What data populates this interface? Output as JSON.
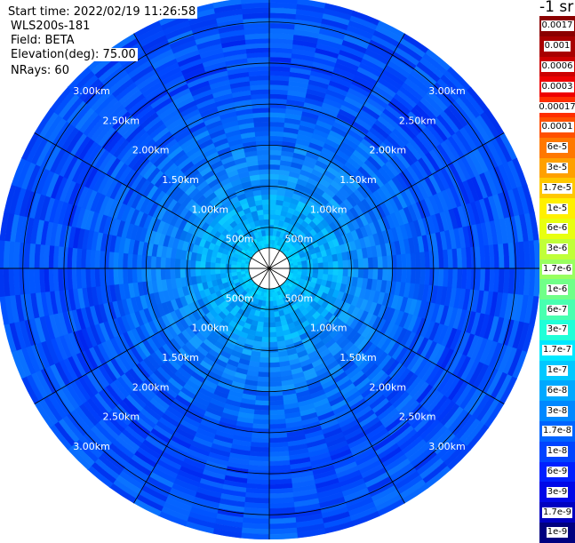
{
  "info": {
    "start_time": "Start time: 2022/02/19 11:26:58",
    "instrument": "WLS200s-181",
    "field": "Field: BETA",
    "elevation": "Elevation(deg): 75.00",
    "nrays": "NRays: 60"
  },
  "colorbar": {
    "title": "-1 sr",
    "entries": [
      {
        "label": "0.0017",
        "color": "#8b0000"
      },
      {
        "label": "0.001",
        "color": "#a80000"
      },
      {
        "label": "0.0006",
        "color": "#cc0000"
      },
      {
        "label": "0.0003",
        "color": "#ee0000"
      },
      {
        "label": "0.00017",
        "color": "#ff2e00"
      },
      {
        "label": "0.0001",
        "color": "#ff5000"
      },
      {
        "label": "6e-5",
        "color": "#ff7800"
      },
      {
        "label": "3e-5",
        "color": "#ffa000"
      },
      {
        "label": "1.7e-5",
        "color": "#ffc800"
      },
      {
        "label": "1e-5",
        "color": "#fff000"
      },
      {
        "label": "6e-6",
        "color": "#e8ff10"
      },
      {
        "label": "3e-6",
        "color": "#c0ff38"
      },
      {
        "label": "1.7e-6",
        "color": "#98ff60"
      },
      {
        "label": "1e-6",
        "color": "#70ff88"
      },
      {
        "label": "6e-7",
        "color": "#48ffb0"
      },
      {
        "label": "3e-7",
        "color": "#20ffd8"
      },
      {
        "label": "1.7e-7",
        "color": "#00e8ff"
      },
      {
        "label": "1e-7",
        "color": "#00c8ff"
      },
      {
        "label": "6e-8",
        "color": "#00a8ff"
      },
      {
        "label": "3e-8",
        "color": "#0088ff"
      },
      {
        "label": "1.7e-8",
        "color": "#0064ff"
      },
      {
        "label": "1e-8",
        "color": "#0044ff"
      },
      {
        "label": "6e-9",
        "color": "#0020ff"
      },
      {
        "label": "3e-9",
        "color": "#0008e8"
      },
      {
        "label": "1.7e-9",
        "color": "#0000c0"
      },
      {
        "label": "1e-9",
        "color": "#000080"
      }
    ]
  },
  "chart_data": {
    "type": "heatmap",
    "projection": "polar (PPI scan)",
    "range_rings_m": [
      250,
      500,
      1000,
      1500,
      2000,
      2500,
      3000
    ],
    "range_labels": [
      {
        "text": "500m",
        "range_m": 500
      },
      {
        "text": "1.00km",
        "range_m": 1000
      },
      {
        "text": "1.50km",
        "range_m": 1500
      },
      {
        "text": "2.00km",
        "range_m": 2000
      },
      {
        "text": "2.50km",
        "range_m": 2500
      },
      {
        "text": "3.00km",
        "range_m": 3000
      }
    ],
    "azimuth_spokes_deg": [
      0,
      30,
      60,
      90,
      120,
      150,
      180,
      210,
      240,
      270,
      300,
      330
    ],
    "max_range_m": 3300,
    "n_rays": 60,
    "range_bins": [
      {
        "start_m": 50,
        "end_m": 250,
        "color": "#ffffff"
      },
      {
        "start_m": 250,
        "end_m": 400,
        "color": "#00c8ff"
      },
      {
        "start_m": 400,
        "end_m": 600,
        "color": "#00aaff"
      },
      {
        "start_m": 600,
        "end_m": 900,
        "color": "#00a8ff"
      },
      {
        "start_m": 900,
        "end_m": 1150,
        "color": "#0a90ff"
      },
      {
        "start_m": 1150,
        "end_m": 1500,
        "color": "#0a7cff"
      },
      {
        "start_m": 1500,
        "end_m": 1900,
        "color": "#0068ff"
      },
      {
        "start_m": 1900,
        "end_m": 2350,
        "color": "#0055ff"
      },
      {
        "start_m": 2350,
        "end_m": 2800,
        "color": "#0048ff"
      },
      {
        "start_m": 2800,
        "end_m": 3300,
        "color": "#0052ff"
      }
    ]
  }
}
